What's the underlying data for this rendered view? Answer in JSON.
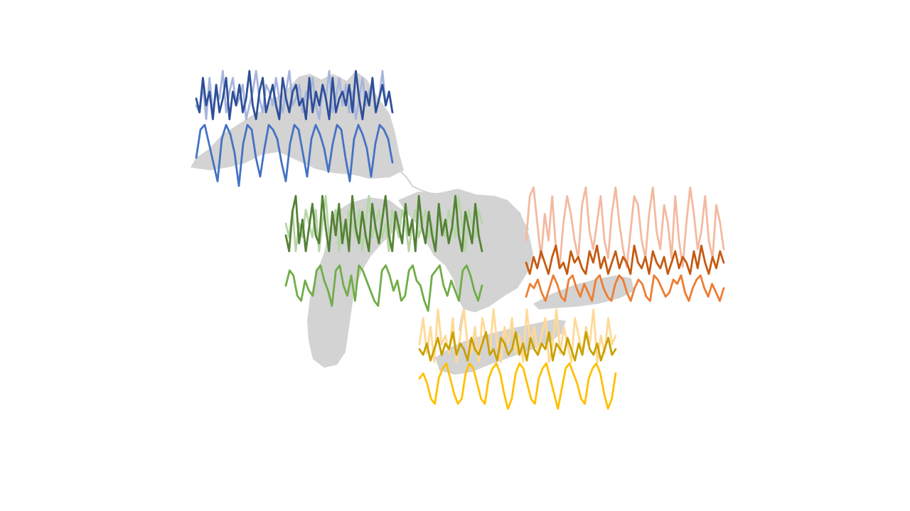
{
  "colors": {
    "land": "#d3d3d3",
    "background": "#ffffff"
  },
  "chart_data": [
    {
      "type": "line",
      "region": "superior",
      "series": [
        {
          "color": "#a7b5dc",
          "values": [
            5,
            4,
            8,
            3,
            9,
            4,
            7,
            6,
            10,
            4,
            7,
            9,
            5,
            6,
            8,
            3,
            5,
            7,
            10,
            6,
            4,
            8,
            7,
            5,
            9,
            6,
            4,
            7,
            10,
            5,
            6,
            8,
            4,
            7,
            6,
            9,
            5,
            3,
            8,
            6,
            10,
            4,
            6,
            9,
            5,
            8,
            4,
            7,
            3,
            6,
            9,
            5,
            7,
            8,
            4,
            6,
            10,
            5,
            7,
            4
          ]
        },
        {
          "color": "#2e4f98",
          "values": [
            6,
            4,
            9,
            5,
            7,
            3,
            8,
            4,
            6,
            9,
            3,
            7,
            5,
            8,
            4,
            6,
            10,
            5,
            3,
            7,
            9,
            4,
            6,
            8,
            5,
            3,
            9,
            6,
            4,
            7,
            8,
            5,
            6,
            3,
            9,
            4,
            7,
            5,
            8,
            6,
            3,
            9,
            4,
            6,
            7,
            5,
            8,
            4,
            10,
            6,
            3,
            7,
            5,
            9,
            4,
            6,
            8,
            5,
            7,
            4
          ]
        },
        {
          "color": "#4472c4",
          "values": [
            2,
            8,
            9,
            5,
            1,
            -3,
            6,
            9,
            7,
            3,
            -4,
            5,
            9,
            8,
            2,
            -2,
            4,
            9,
            8,
            6,
            1,
            -3,
            5,
            9,
            8,
            3,
            -2,
            6,
            9,
            7,
            4,
            -1,
            5,
            9,
            8,
            2,
            -3,
            6,
            9,
            7,
            4,
            -2,
            5,
            9,
            8,
            6,
            1
          ]
        }
      ]
    },
    {
      "type": "line",
      "region": "michigan",
      "series": [
        {
          "color": "#b7d5a8",
          "values": [
            5,
            4,
            6,
            3,
            5,
            4,
            6,
            5,
            4,
            6,
            3,
            5,
            7,
            4,
            5,
            6,
            3,
            5,
            4,
            6,
            5,
            4,
            6,
            3,
            5,
            7,
            4,
            5,
            6,
            4,
            5,
            3,
            6,
            5,
            4,
            6,
            5,
            3,
            5,
            6,
            4,
            5,
            6,
            4,
            5,
            3,
            6,
            5,
            4,
            6,
            5,
            4,
            7,
            5,
            3,
            6,
            5,
            4,
            6,
            5
          ]
        },
        {
          "color": "#548235",
          "values": [
            5,
            3,
            8,
            10,
            4,
            7,
            3,
            6,
            9,
            5,
            4,
            10,
            6,
            3,
            8,
            5,
            9,
            4,
            7,
            3,
            10,
            6,
            4,
            8,
            5,
            3,
            9,
            6,
            4,
            7,
            10,
            5,
            3,
            8,
            6,
            4,
            9,
            5,
            7,
            3,
            10,
            6,
            4,
            8,
            5,
            3,
            9,
            5,
            7,
            4,
            6,
            10,
            5,
            3,
            8,
            6,
            4,
            9,
            5,
            3
          ]
        },
        {
          "color": "#70ad47",
          "values": [
            5,
            8,
            7,
            3,
            2,
            6,
            4,
            3,
            8,
            9,
            6,
            4,
            1,
            8,
            9,
            5,
            3,
            7,
            2,
            9,
            8,
            6,
            4,
            2,
            1,
            8,
            9,
            7,
            4,
            6,
            2,
            3,
            8,
            9,
            6,
            5,
            2,
            0,
            7,
            8,
            9,
            5,
            3,
            6,
            4,
            2,
            8,
            9,
            7,
            4,
            2,
            5
          ]
        }
      ]
    },
    {
      "type": "line",
      "region": "huron",
      "series": [
        {
          "color": "#f4b9a0",
          "values": [
            4,
            9,
            10,
            6,
            2,
            7,
            4,
            9,
            3,
            1,
            6,
            9,
            7,
            4,
            2,
            8,
            10,
            5,
            3,
            6,
            9,
            4,
            2,
            7,
            10,
            6,
            3,
            1,
            5,
            9,
            8,
            4,
            2,
            7,
            10,
            5,
            3,
            8,
            6,
            2,
            9,
            4,
            1,
            6,
            10,
            7,
            3,
            5,
            9,
            4,
            2,
            8,
            6,
            3
          ]
        },
        {
          "color": "#c55a11",
          "values": [
            5,
            3,
            6,
            4,
            7,
            5,
            3,
            6,
            8,
            4,
            5,
            3,
            7,
            5,
            6,
            4,
            3,
            7,
            5,
            8,
            4,
            6,
            3,
            5,
            7,
            4,
            6,
            5,
            3,
            8,
            5,
            4,
            6,
            3,
            7,
            5,
            4,
            6,
            3,
            5,
            7,
            4,
            6,
            5,
            3,
            7,
            4,
            8,
            5,
            3,
            6,
            4,
            7,
            5
          ]
        },
        {
          "color": "#ed7d31",
          "values": [
            3,
            6,
            5,
            7,
            4,
            2,
            5,
            8,
            6,
            3,
            2,
            7,
            8,
            5,
            3,
            6,
            4,
            2,
            7,
            8,
            5,
            3,
            2,
            6,
            8,
            7,
            4,
            2,
            5,
            7,
            6,
            3,
            2,
            8,
            7,
            5,
            3,
            4,
            7,
            6,
            8,
            4,
            2,
            5,
            7,
            8,
            5,
            3,
            6,
            4,
            2,
            5
          ]
        }
      ]
    },
    {
      "type": "line",
      "region": "erie",
      "series": [
        {
          "color": "#ffd996",
          "values": [
            5,
            8,
            4,
            7,
            3,
            9,
            5,
            6,
            4,
            8,
            3,
            6,
            9,
            5,
            4,
            7,
            3,
            8,
            6,
            4,
            9,
            5,
            3,
            7,
            5,
            8,
            4,
            6,
            3,
            9,
            5,
            7,
            4,
            6,
            8,
            3,
            5,
            9,
            4,
            7,
            5,
            3,
            8,
            6,
            4,
            7,
            5,
            9,
            3,
            6,
            4,
            8,
            5,
            6
          ]
        },
        {
          "color": "#c9a000",
          "values": [
            5,
            4,
            6,
            3,
            5,
            7,
            4,
            6,
            5,
            8,
            4,
            6,
            5,
            3,
            7,
            5,
            4,
            6,
            8,
            4,
            5,
            3,
            7,
            6,
            4,
            5,
            8,
            4,
            6,
            3,
            7,
            5,
            4,
            6,
            5,
            8,
            3,
            6,
            5,
            4,
            7,
            5,
            3,
            6,
            4,
            8,
            5,
            4,
            6,
            3,
            5,
            7,
            4,
            5
          ]
        },
        {
          "color": "#ffc000",
          "values": [
            6,
            7,
            5,
            2,
            1,
            6,
            8,
            9,
            6,
            3,
            1,
            2,
            7,
            9,
            8,
            5,
            2,
            1,
            6,
            8,
            9,
            7,
            3,
            0,
            2,
            7,
            9,
            8,
            5,
            2,
            1,
            6,
            8,
            9,
            6,
            3,
            0,
            4,
            8,
            9,
            7,
            5,
            2,
            1,
            6,
            8,
            9,
            7,
            3,
            0,
            2,
            7
          ]
        }
      ]
    }
  ]
}
